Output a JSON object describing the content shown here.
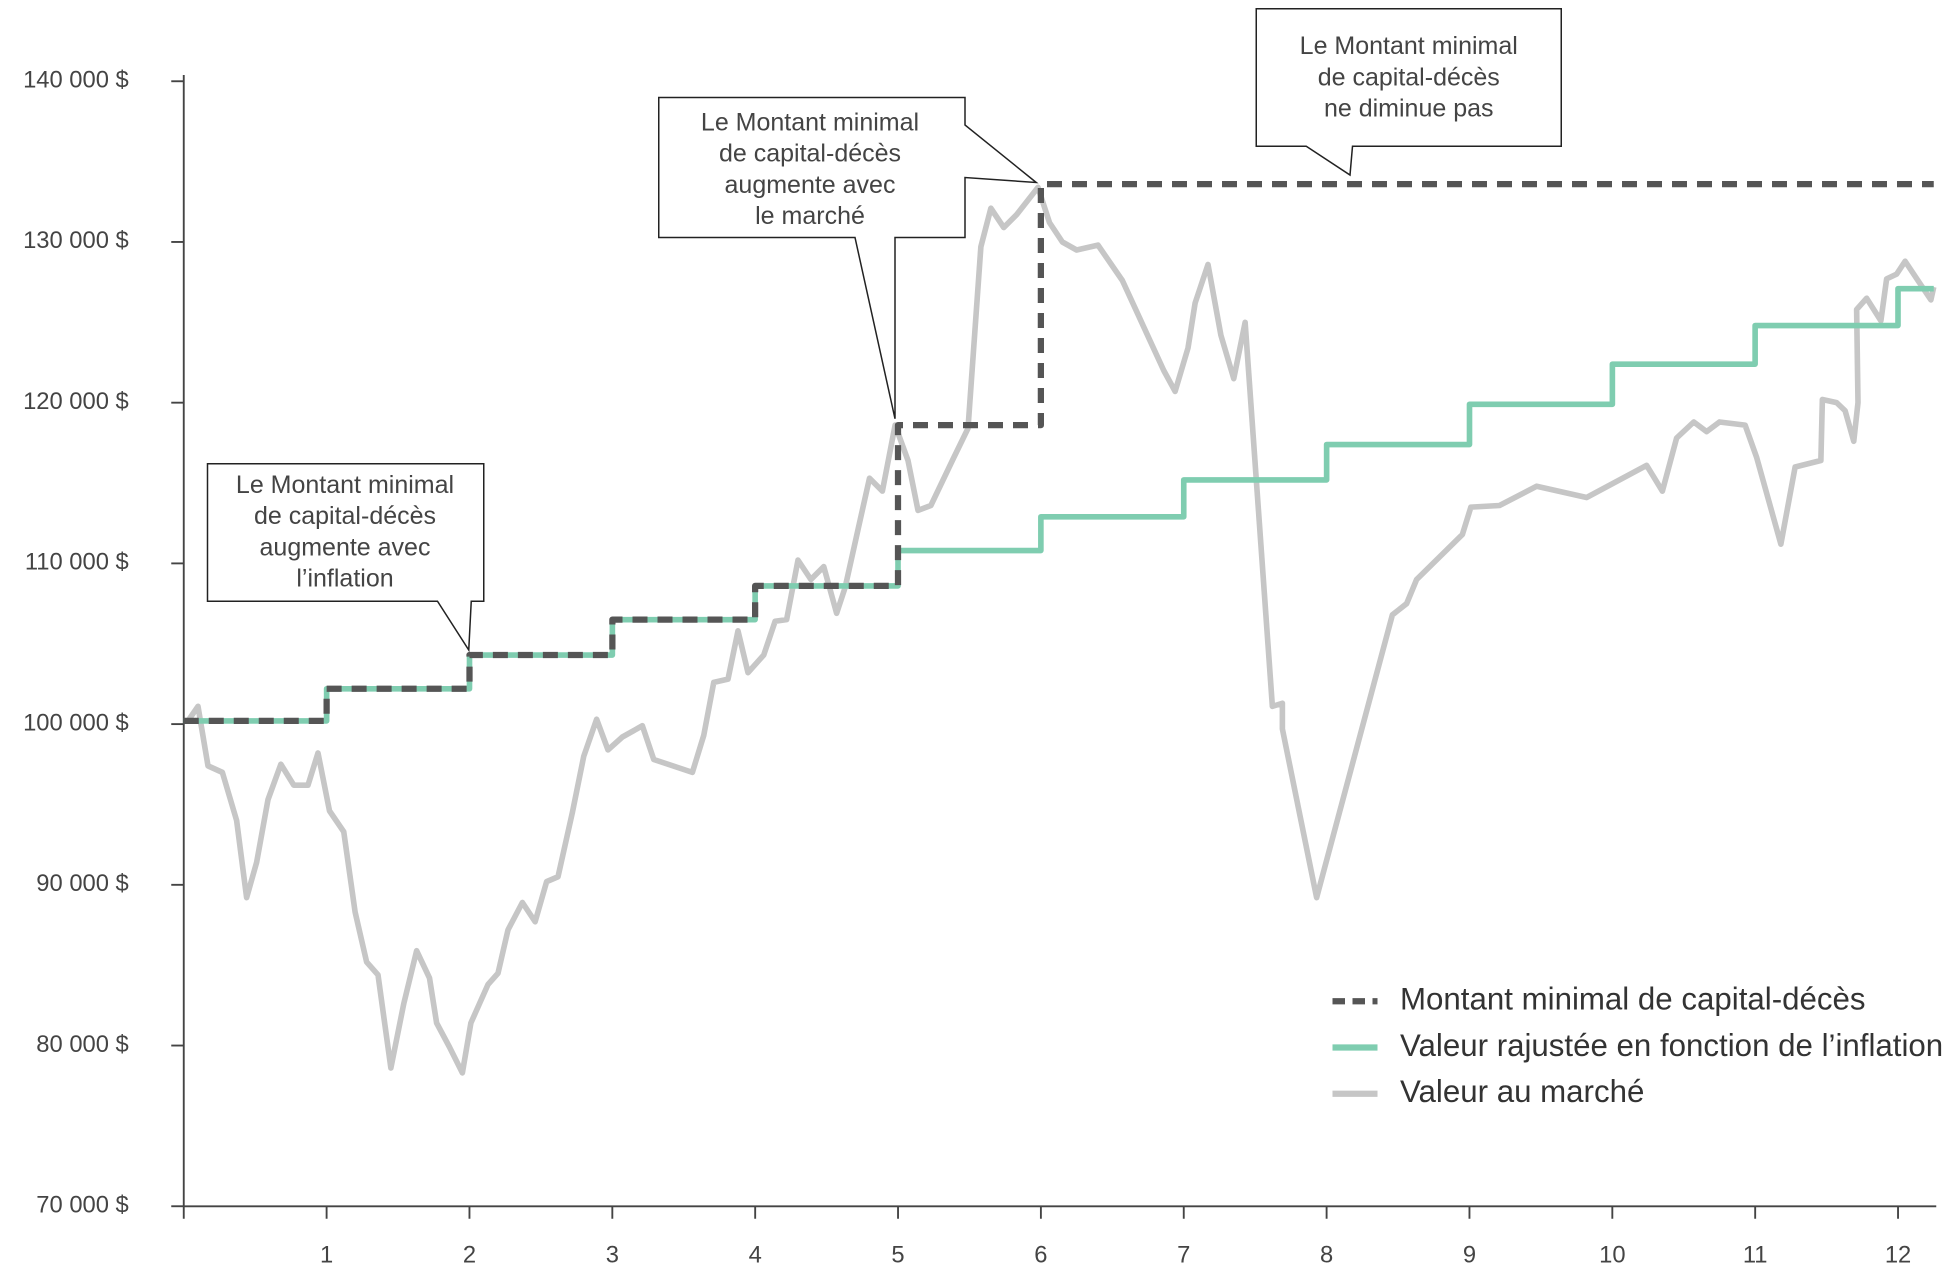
{
  "chart_data": {
    "type": "line",
    "xlim": [
      0,
      12.25
    ],
    "ylim": [
      70000,
      140000
    ],
    "xticks": [
      1,
      2,
      3,
      4,
      5,
      6,
      7,
      8,
      9,
      10,
      11,
      12
    ],
    "yticks": [
      {
        "value": 70000,
        "label": "70 000 $"
      },
      {
        "value": 80000,
        "label": "80 000 $"
      },
      {
        "value": 90000,
        "label": "90 000 $"
      },
      {
        "value": 100000,
        "label": "100 000 $"
      },
      {
        "value": 110000,
        "label": "110 000 $"
      },
      {
        "value": 120000,
        "label": "120 000 $"
      },
      {
        "value": 130000,
        "label": "130 000 $"
      },
      {
        "value": 140000,
        "label": "140 000 $"
      }
    ],
    "legend": "lower right",
    "series": [
      {
        "name": "Valeur au marché",
        "color": "#c6c6c6",
        "style": "solid",
        "x": [
          0.03,
          0.1,
          0.17,
          0.27,
          0.37,
          0.44,
          0.51,
          0.59,
          0.68,
          0.77,
          0.87,
          0.94,
          1.02,
          1.12,
          1.2,
          1.28,
          1.36,
          1.45,
          1.54,
          1.63,
          1.72,
          1.77,
          1.86,
          1.95,
          2.01,
          2.13,
          2.2,
          2.27,
          2.37,
          2.46,
          2.54,
          2.62,
          2.72,
          2.8,
          2.89,
          2.97,
          3.07,
          3.21,
          3.29,
          3.56,
          3.64,
          3.71,
          3.81,
          3.88,
          3.95,
          4.06,
          4.14,
          4.22,
          4.3,
          4.39,
          4.48,
          4.57,
          4.63,
          4.72,
          4.8,
          4.89,
          4.98,
          5.07,
          5.14,
          5.23,
          5.38,
          5.49,
          5.58,
          5.65,
          5.74,
          5.83,
          5.98,
          6.06,
          6.15,
          6.25,
          6.4,
          6.57,
          6.86,
          6.94,
          7.03,
          7.08,
          7.17,
          7.26,
          7.35,
          7.43,
          7.62,
          7.69,
          7.69,
          7.93,
          8.46,
          8.56,
          8.63,
          8.95,
          9.01,
          9.21,
          9.47,
          9.82,
          10.24,
          10.35,
          10.45,
          10.57,
          10.66,
          10.75,
          10.93,
          11.01,
          11.18,
          11.28,
          11.46,
          11.47,
          11.57,
          11.63,
          11.69,
          11.72,
          11.71,
          11.78,
          11.88,
          11.92,
          11.99,
          12.05,
          12.23,
          12.25
        ],
        "values": [
          100200,
          101100,
          97400,
          97000,
          94000,
          89200,
          91400,
          95300,
          97500,
          96200,
          96200,
          98200,
          94600,
          93300,
          88300,
          85200,
          84400,
          78600,
          82600,
          85900,
          84200,
          81400,
          79900,
          78300,
          81400,
          83800,
          84500,
          87200,
          88900,
          87700,
          90200,
          90500,
          94500,
          98000,
          100300,
          98400,
          99200,
          99900,
          97800,
          97000,
          99300,
          102600,
          102800,
          105800,
          103200,
          104300,
          106400,
          106500,
          110200,
          109000,
          109800,
          106900,
          108500,
          112100,
          115300,
          114500,
          118600,
          116400,
          113300,
          113600,
          116400,
          118400,
          129700,
          132100,
          130900,
          131700,
          133400,
          131200,
          130000,
          129500,
          129800,
          127600,
          122000,
          120700,
          123400,
          126200,
          128600,
          124200,
          121500,
          125000,
          101100,
          101300,
          99700,
          89200,
          106800,
          107500,
          109000,
          111800,
          113500,
          113600,
          114800,
          114100,
          116100,
          114500,
          117800,
          118800,
          118200,
          118800,
          118600,
          116600,
          111200,
          116000,
          116400,
          120200,
          120000,
          119500,
          117600,
          120000,
          125800,
          126500,
          125100,
          127700,
          128000,
          128800,
          126400,
          127200
        ]
      },
      {
        "name": "Valeur rajustée en fonction de l’inflation",
        "color": "#7fcdb0",
        "style": "solid",
        "x": [
          0,
          1,
          1,
          2,
          2,
          3,
          3,
          4,
          4,
          5,
          5,
          6,
          6,
          7,
          7,
          8,
          8,
          9,
          9,
          10,
          10,
          11,
          11,
          12,
          12,
          12.25
        ],
        "values": [
          100200,
          100200,
          102200,
          102200,
          104300,
          104300,
          106500,
          106500,
          108600,
          108600,
          110800,
          110800,
          112900,
          112900,
          115200,
          115200,
          117400,
          117400,
          119900,
          119900,
          122400,
          122400,
          124800,
          124800,
          127100,
          127100
        ]
      },
      {
        "name": "Montant minimal de capital-décès",
        "color": "#555555",
        "style": "dashed",
        "x": [
          0,
          1,
          1,
          2,
          2,
          3,
          3,
          4,
          4,
          5,
          5,
          6,
          6,
          12.25
        ],
        "values": [
          100200,
          100200,
          102200,
          102200,
          104300,
          104300,
          106500,
          106500,
          108600,
          108600,
          118600,
          118600,
          133600,
          133600
        ]
      }
    ],
    "annotations": [
      {
        "lines": [
          "Le Montant minimal",
          "de capital-décès",
          "augmente avec",
          "l’inflation"
        ]
      },
      {
        "lines": [
          "Le Montant minimal",
          "de capital-décès",
          "augmente avec",
          "le marché"
        ]
      },
      {
        "lines": [
          "Le Montant minimal",
          "de capital-décès",
          "ne diminue pas"
        ]
      }
    ]
  }
}
